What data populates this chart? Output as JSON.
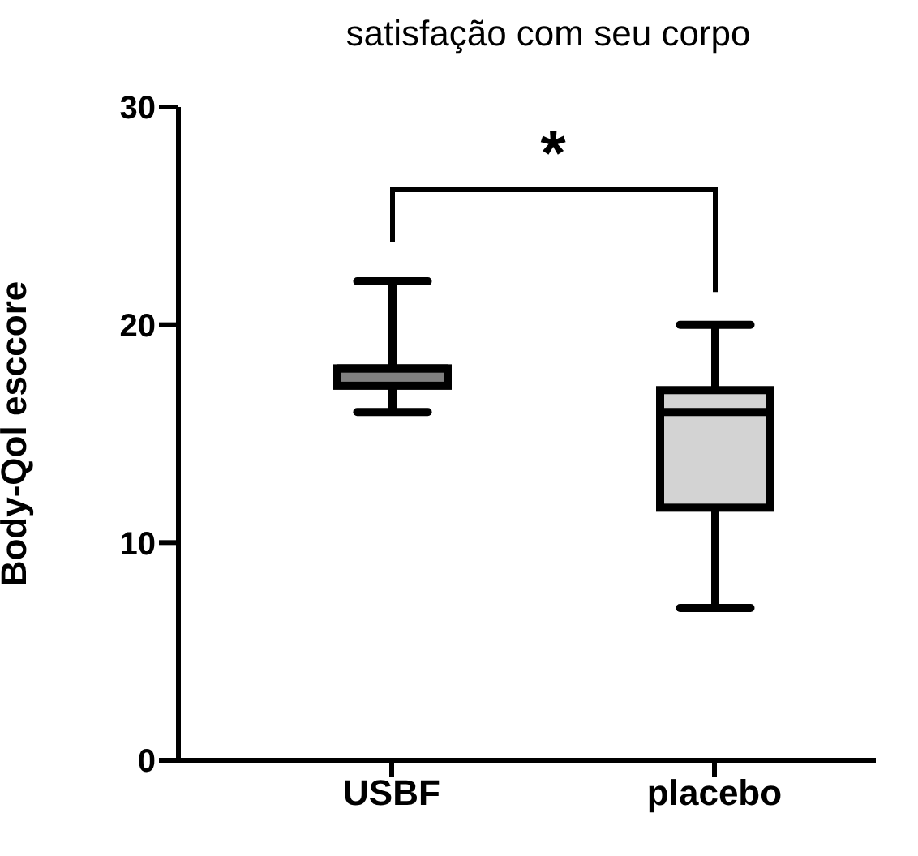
{
  "chart_data": {
    "type": "box",
    "title": "satisfação com seu corpo",
    "ylabel": "Body-Qol esccore",
    "categories": [
      "USBF",
      "placebo"
    ],
    "boxes": [
      {
        "low": 16,
        "q1": 17.2,
        "median": 18,
        "q3": 18,
        "high": 22
      },
      {
        "low": 7,
        "q1": 11.6,
        "median": 16,
        "q3": 17,
        "high": 20
      }
    ],
    "colors": [
      "#808080",
      "#d3d3d3"
    ],
    "ylim": [
      0,
      30
    ],
    "yticks": [
      0,
      10,
      20,
      30
    ],
    "annotations": [
      "*"
    ]
  }
}
